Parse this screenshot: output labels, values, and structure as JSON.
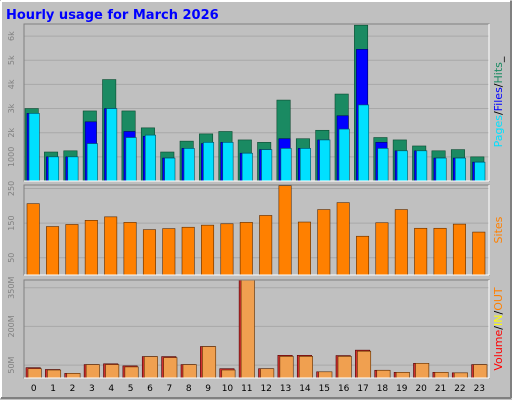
{
  "title": "Hourly usage for March 2026",
  "colors": {
    "background": "#c0c0c0",
    "border_light": "#ffffff",
    "border_dark": "#808080",
    "title_text": "#0000ff",
    "axis_text": "#808080",
    "hour_text": "#000000",
    "hits": "#1a8a62",
    "files": "#0000ff",
    "pages": "#00e0ff",
    "sites": "#ff8000",
    "volume": "#ff0000",
    "volume_in": "#ffff00",
    "volume_out": "#ff8000",
    "volume_total_fill": "#d03030",
    "volume_inout_fill": "#f0a050"
  },
  "legend": {
    "top": [
      {
        "key": "pages",
        "text": "Pages"
      },
      {
        "key": "sep",
        "text": "/"
      },
      {
        "key": "files",
        "text": "Files"
      },
      {
        "key": "sep",
        "text": "/"
      },
      {
        "key": "hits",
        "text": "Hits"
      },
      {
        "key": "sep",
        "text": "_"
      }
    ],
    "middle": [
      {
        "key": "sites",
        "text": "Sites"
      }
    ],
    "bottom": [
      {
        "key": "volume",
        "text": "Volume"
      },
      {
        "key": "sep",
        "text": "/"
      },
      {
        "key": "volume_in",
        "text": "IN"
      },
      {
        "key": "sep",
        "text": "/"
      },
      {
        "key": "volume_out",
        "text": "OUT"
      }
    ]
  },
  "chart_data": [
    {
      "type": "bar",
      "id": "hits_files_pages",
      "categories": [
        "0",
        "1",
        "2",
        "3",
        "4",
        "5",
        "6",
        "7",
        "8",
        "9",
        "10",
        "11",
        "12",
        "13",
        "14",
        "15",
        "16",
        "17",
        "18",
        "19",
        "20",
        "21",
        "22",
        "23"
      ],
      "ylim": [
        0,
        6500
      ],
      "yticks": [
        {
          "value": 1000,
          "label": "1000"
        },
        {
          "value": 2000,
          "label": "2k"
        },
        {
          "value": 3000,
          "label": "3k"
        },
        {
          "value": 4000,
          "label": "4k"
        },
        {
          "value": 5000,
          "label": "5k"
        },
        {
          "value": 6000,
          "label": "6k"
        }
      ],
      "series": [
        {
          "name": "Hits",
          "values": [
            3000,
            1200,
            1250,
            2900,
            4200,
            2900,
            2200,
            1200,
            1650,
            1950,
            2050,
            1700,
            1600,
            3350,
            1750,
            2100,
            3600,
            6450,
            1800,
            1700,
            1450,
            1250,
            1300,
            1000
          ]
        },
        {
          "name": "Files",
          "values": [
            2800,
            1000,
            1000,
            2450,
            3000,
            2050,
            1850,
            950,
            1350,
            1550,
            1600,
            1150,
            1300,
            1750,
            1350,
            1700,
            2700,
            5450,
            1600,
            1250,
            1250,
            950,
            950,
            780
          ]
        },
        {
          "name": "Pages",
          "values": [
            2800,
            1000,
            1000,
            1550,
            3000,
            1800,
            1900,
            950,
            1350,
            1600,
            1600,
            1150,
            1300,
            1350,
            1350,
            1700,
            2150,
            3150,
            1350,
            1250,
            1250,
            950,
            950,
            780
          ]
        }
      ]
    },
    {
      "type": "bar",
      "id": "sites",
      "categories": [
        "0",
        "1",
        "2",
        "3",
        "4",
        "5",
        "6",
        "7",
        "8",
        "9",
        "10",
        "11",
        "12",
        "13",
        "14",
        "15",
        "16",
        "17",
        "18",
        "19",
        "20",
        "21",
        "22",
        "23"
      ],
      "ylim": [
        0,
        260
      ],
      "yticks": [
        {
          "value": 50,
          "label": "50"
        },
        {
          "value": 150,
          "label": "150"
        },
        {
          "value": 250,
          "label": "250"
        }
      ],
      "series": [
        {
          "name": "Sites",
          "values": [
            206,
            140,
            146,
            158,
            168,
            152,
            131,
            134,
            138,
            144,
            148,
            152,
            172,
            258,
            153,
            189,
            209,
            112,
            151,
            189,
            135,
            135,
            147,
            124
          ]
        }
      ]
    },
    {
      "type": "bar",
      "id": "volume",
      "categories": [
        "0",
        "1",
        "2",
        "3",
        "4",
        "5",
        "6",
        "7",
        "8",
        "9",
        "10",
        "11",
        "12",
        "13",
        "14",
        "15",
        "16",
        "17",
        "18",
        "19",
        "20",
        "21",
        "22",
        "23"
      ],
      "ylim": [
        0,
        380
      ],
      "yticks": [
        {
          "value": 50,
          "label": "50M"
        },
        {
          "value": 200,
          "label": "200M"
        },
        {
          "value": 350,
          "label": "350M"
        }
      ],
      "series": [
        {
          "name": "Volume",
          "values": [
            40,
            33,
            18,
            52,
            55,
            47,
            83,
            83,
            52,
            122,
            36,
            380,
            36,
            88,
            88,
            24,
            87,
            108,
            30,
            22,
            57,
            22,
            20,
            52
          ]
        },
        {
          "name": "OUT",
          "values": [
            36,
            31,
            18,
            52,
            52,
            43,
            83,
            79,
            52,
            122,
            31,
            380,
            36,
            84,
            84,
            24,
            84,
            104,
            30,
            22,
            57,
            22,
            20,
            52
          ]
        }
      ]
    }
  ]
}
